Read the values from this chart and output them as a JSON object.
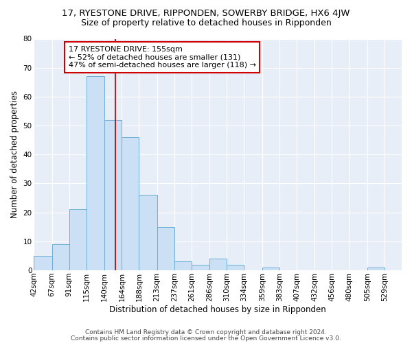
{
  "title": "17, RYESTONE DRIVE, RIPPONDEN, SOWERBY BRIDGE, HX6 4JW",
  "subtitle": "Size of property relative to detached houses in Ripponden",
  "xlabel": "Distribution of detached houses by size in Ripponden",
  "ylabel": "Number of detached properties",
  "bin_labels": [
    "42sqm",
    "67sqm",
    "91sqm",
    "115sqm",
    "140sqm",
    "164sqm",
    "188sqm",
    "213sqm",
    "237sqm",
    "261sqm",
    "286sqm",
    "310sqm",
    "334sqm",
    "359sqm",
    "383sqm",
    "407sqm",
    "432sqm",
    "456sqm",
    "480sqm",
    "505sqm",
    "529sqm"
  ],
  "bin_edges": [
    42,
    67,
    91,
    115,
    140,
    164,
    188,
    213,
    237,
    261,
    286,
    310,
    334,
    359,
    383,
    407,
    432,
    456,
    480,
    505,
    529
  ],
  "bar_heights": [
    5,
    9,
    21,
    67,
    52,
    46,
    26,
    15,
    3,
    2,
    4,
    2,
    0,
    1,
    0,
    0,
    0,
    0,
    0,
    1,
    0
  ],
  "bar_color": "#cce0f5",
  "bar_edge_color": "#6baed6",
  "property_line_x": 155,
  "property_line_color": "#cc0000",
  "annotation_line1": "17 RYESTONE DRIVE: 155sqm",
  "annotation_line2": "← 52% of detached houses are smaller (131)",
  "annotation_line3": "47% of semi-detached houses are larger (118) →",
  "annotation_box_color": "#ffffff",
  "annotation_box_edge_color": "#cc0000",
  "ylim": [
    0,
    80
  ],
  "yticks": [
    0,
    10,
    20,
    30,
    40,
    50,
    60,
    70,
    80
  ],
  "footer_line1": "Contains HM Land Registry data © Crown copyright and database right 2024.",
  "footer_line2": "Contains public sector information licensed under the Open Government Licence v3.0.",
  "bg_color": "#ffffff",
  "plot_bg_color": "#e8eef8",
  "title_fontsize": 9.5,
  "subtitle_fontsize": 9,
  "axis_label_fontsize": 8.5,
  "tick_fontsize": 7.5,
  "annotation_fontsize": 8,
  "footer_fontsize": 6.5
}
